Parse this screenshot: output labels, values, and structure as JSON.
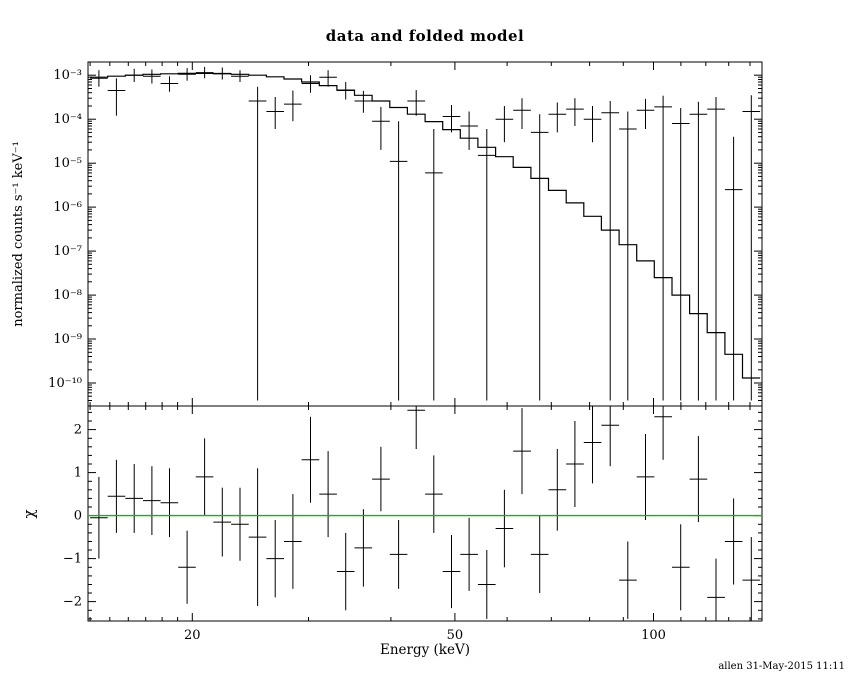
{
  "colors": {
    "background": "#ffffff",
    "foreground": "#000000",
    "zero_line": "#00c000"
  },
  "signature": "allen 31-May-2015 11:11",
  "chart_data": [
    {
      "type": "line",
      "title": "data and folded model",
      "ylabel": "normalized counts s⁻¹ keV⁻¹",
      "xscale": "log",
      "yscale": "log",
      "xlim": [
        13.9,
        146
      ],
      "ylim": [
        3e-11,
        0.002
      ],
      "x_major_ticks": [
        {
          "value": 20,
          "label": "20"
        },
        {
          "value": 50,
          "label": "50"
        },
        {
          "value": 100,
          "label": "100"
        }
      ],
      "x_minor_ticks": [
        14,
        15,
        16,
        17,
        18,
        19,
        30,
        40,
        60,
        70,
        80,
        90,
        110,
        120,
        130,
        140
      ],
      "y_major_ticks": [
        {
          "value": 0.001,
          "label": "10⁻³"
        },
        {
          "value": 0.0001,
          "label": "10⁻⁴"
        },
        {
          "value": 1e-05,
          "label": "10⁻⁵"
        },
        {
          "value": 1e-06,
          "label": "10⁻⁶"
        },
        {
          "value": 1e-07,
          "label": "10⁻⁷"
        },
        {
          "value": 1e-08,
          "label": "10⁻⁸"
        },
        {
          "value": 1e-09,
          "label": "10⁻⁹"
        },
        {
          "value": 1e-10,
          "label": "10⁻¹⁰"
        }
      ],
      "bin_edges": [
        14.0,
        14.89,
        15.83,
        16.84,
        17.91,
        19.04,
        20.25,
        21.53,
        22.9,
        24.35,
        25.9,
        27.54,
        29.29,
        31.15,
        33.13,
        35.23,
        37.46,
        39.84,
        42.37,
        45.06,
        47.92,
        50.96,
        54.19,
        57.63,
        61.29,
        65.18,
        69.32,
        73.72,
        78.4,
        83.37,
        88.67,
        94.29,
        100.28,
        106.64,
        113.41,
        120.61,
        128.27,
        136.41,
        145.06
      ],
      "bin_centers": [
        14.44,
        15.35,
        16.33,
        17.37,
        18.47,
        19.64,
        20.88,
        22.21,
        23.62,
        25.12,
        26.71,
        28.41,
        30.21,
        32.12,
        34.16,
        36.33,
        38.63,
        41.08,
        43.69,
        46.46,
        49.41,
        52.55,
        55.88,
        59.43,
        63.2,
        67.21,
        71.48,
        76.01,
        80.83,
        85.96,
        91.42,
        97.22,
        103.39,
        109.95,
        116.93,
        124.35,
        132.24,
        140.63
      ],
      "model": {
        "name": "folded model",
        "y": [
          0.0009,
          0.00095,
          0.001,
          0.00105,
          0.00108,
          0.0011,
          0.0011,
          0.00108,
          0.00105,
          0.001,
          0.00092,
          0.00082,
          0.0007,
          0.00058,
          0.00046,
          0.00035,
          0.00026,
          0.000185,
          0.00013,
          8.8e-05,
          5.8e-05,
          3.7e-05,
          2.3e-05,
          1.4e-05,
          8e-06,
          4.5e-06,
          2.4e-06,
          1.25e-06,
          6.2e-07,
          3e-07,
          1.4e-07,
          6e-08,
          2.5e-08,
          1e-08,
          3.8e-09,
          1.4e-09,
          4.5e-10,
          1.3e-10
        ]
      },
      "data": {
        "name": "data",
        "points_format": [
          "y",
          "y_low",
          "y_high"
        ],
        "points": [
          [
            0.00085,
            0.00055,
            0.0013
          ],
          [
            0.00045,
            0.00012,
            0.00085
          ],
          [
            0.001,
            0.0007,
            0.0014
          ],
          [
            0.00095,
            0.00065,
            0.00135
          ],
          [
            0.00065,
            0.00042,
            0.00095
          ],
          [
            0.00105,
            0.00075,
            0.00145
          ],
          [
            0.00115,
            0.00085,
            0.00155
          ],
          [
            0.0011,
            0.0008,
            0.0015
          ],
          [
            0.00095,
            0.0007,
            0.0013
          ],
          [
            0.00026,
            4e-11,
            0.00055
          ],
          [
            0.00015,
            6e-05,
            0.00032
          ],
          [
            0.00022,
            9e-05,
            0.00045
          ],
          [
            0.00065,
            0.0004,
            0.001
          ],
          [
            0.0009,
            0.00055,
            0.0013
          ],
          [
            0.00045,
            0.00028,
            0.0007
          ],
          [
            0.00026,
            0.00014,
            0.00044
          ],
          [
            9e-05,
            2e-05,
            0.00019
          ],
          [
            1.1e-05,
            4e-11,
            9e-05
          ],
          [
            0.00026,
            0.00012,
            0.00046
          ],
          [
            6e-06,
            4e-11,
            6e-05
          ],
          [
            0.000115,
            5e-05,
            0.00021
          ],
          [
            7e-05,
            2e-05,
            0.00015
          ],
          [
            1.5e-05,
            4e-11,
            6e-05
          ],
          [
            0.0001,
            3e-05,
            0.0002
          ],
          [
            0.00016,
            6e-05,
            0.0003
          ],
          [
            5e-05,
            4e-11,
            0.00013
          ],
          [
            0.00013,
            5e-05,
            0.00024
          ],
          [
            0.00017,
            7e-05,
            0.0003
          ],
          [
            0.0001,
            3e-05,
            0.0002
          ],
          [
            0.00014,
            4e-11,
            0.00026
          ],
          [
            6e-05,
            4e-11,
            0.00015
          ],
          [
            0.00016,
            6e-05,
            0.00029
          ],
          [
            0.00019,
            4e-11,
            0.00034
          ],
          [
            8e-05,
            4e-11,
            0.00018
          ],
          [
            0.00013,
            4e-11,
            0.00025
          ],
          [
            0.00017,
            4e-11,
            0.00032
          ],
          [
            2.5e-06,
            4e-11,
            4e-05
          ],
          [
            0.00015,
            4e-11,
            0.00035
          ]
        ]
      }
    },
    {
      "type": "scatter",
      "ylabel": "χ",
      "xlabel": "Energy (keV)",
      "xscale": "log",
      "yscale": "linear",
      "ylim": [
        -2.45,
        2.55
      ],
      "y_major_ticks": [
        {
          "value": -2,
          "label": "−2"
        },
        {
          "value": -1,
          "label": "−1"
        },
        {
          "value": 0,
          "label": "0"
        },
        {
          "value": 1,
          "label": "1"
        },
        {
          "value": 2,
          "label": "2"
        }
      ],
      "zero_line": {
        "y": 0,
        "color": "#00c000"
      },
      "points_format": [
        "chi",
        "err"
      ],
      "points": [
        [
          -0.05,
          0.95
        ],
        [
          0.45,
          0.85
        ],
        [
          0.4,
          0.8
        ],
        [
          0.35,
          0.8
        ],
        [
          0.3,
          0.8
        ],
        [
          -1.2,
          0.85
        ],
        [
          0.9,
          0.9
        ],
        [
          -0.15,
          0.8
        ],
        [
          -0.2,
          0.85
        ],
        [
          -0.5,
          1.6
        ],
        [
          -1.0,
          0.9
        ],
        [
          -0.6,
          1.1
        ],
        [
          1.3,
          1.0
        ],
        [
          0.5,
          1.0
        ],
        [
          -1.3,
          0.9
        ],
        [
          -0.75,
          0.9
        ],
        [
          0.85,
          0.75
        ],
        [
          -0.9,
          0.8
        ],
        [
          2.45,
          0.9
        ],
        [
          0.5,
          0.9
        ],
        [
          -1.3,
          0.85
        ],
        [
          -0.9,
          0.85
        ],
        [
          -1.6,
          0.8
        ],
        [
          -0.3,
          0.9
        ],
        [
          1.5,
          1.0
        ],
        [
          -0.9,
          0.9
        ],
        [
          0.6,
          0.95
        ],
        [
          1.2,
          1.0
        ],
        [
          1.7,
          0.95
        ],
        [
          2.1,
          0.95
        ],
        [
          -1.5,
          0.9
        ],
        [
          0.9,
          1.0
        ],
        [
          2.3,
          1.0
        ],
        [
          -1.2,
          1.0
        ],
        [
          0.85,
          1.0
        ],
        [
          -1.9,
          0.9
        ],
        [
          -0.6,
          1.0
        ],
        [
          -1.5,
          1.0
        ]
      ]
    }
  ]
}
